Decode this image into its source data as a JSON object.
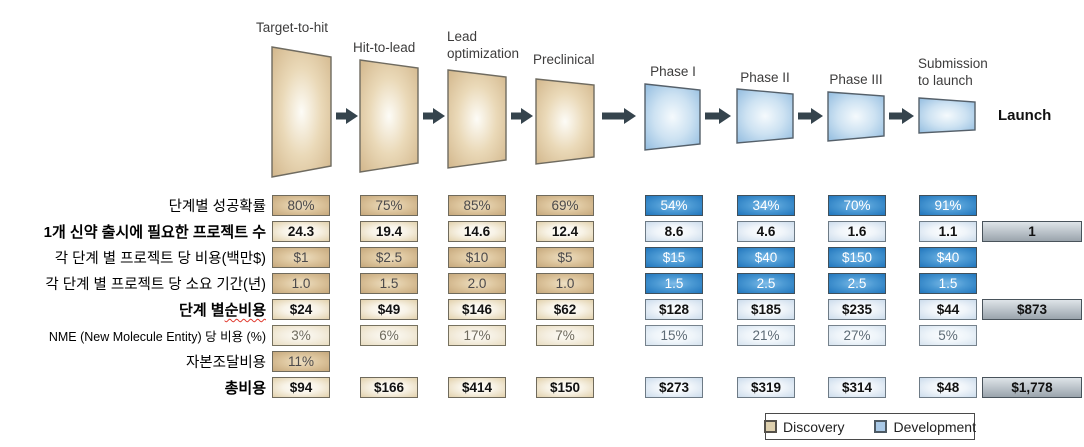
{
  "stages": [
    {
      "label": "Target-to-hit",
      "type": "discovery"
    },
    {
      "label": "Hit-to-lead",
      "type": "discovery"
    },
    {
      "label": "Lead optimization",
      "type": "discovery"
    },
    {
      "label": "Preclinical",
      "type": "discovery"
    },
    {
      "label": "Phase I",
      "type": "development"
    },
    {
      "label": "Phase II",
      "type": "development"
    },
    {
      "label": "Phase III",
      "type": "development"
    },
    {
      "label": "Submission to launch",
      "type": "development"
    }
  ],
  "launch_label": "Launch",
  "legend": {
    "discovery": "Discovery",
    "development": "Development"
  },
  "colors": {
    "discovery_fill": "#d3b88e",
    "development_fill": "#4c9ad4",
    "total_fill": "#aab3ba",
    "arrow": "#35444d",
    "wavy_underline": "#e0392e"
  },
  "table": {
    "rows": [
      {
        "label": "단계별 성공확률",
        "bold": false,
        "variant": "strong",
        "values": [
          "80%",
          "75%",
          "85%",
          "69%",
          "54%",
          "34%",
          "70%",
          "91%"
        ],
        "extra": null
      },
      {
        "label": "1개 신약 출시에 필요한 프로젝트 수",
        "bold": true,
        "variant": "light",
        "values": [
          "24.3",
          "19.4",
          "14.6",
          "12.4",
          "8.6",
          "4.6",
          "1.6",
          "1.1"
        ],
        "extra": "1"
      },
      {
        "label": "각 단계 별 프로젝트 당 비용(백만$)",
        "bold": false,
        "variant": "strong",
        "values": [
          "$1",
          "$2.5",
          "$10",
          "$5",
          "$15",
          "$40",
          "$150",
          "$40"
        ],
        "extra": null
      },
      {
        "label": "각 단계 별 프로젝트 당 소요 기간(년)",
        "bold": false,
        "variant": "strong",
        "values": [
          "1.0",
          "1.5",
          "2.0",
          "1.0",
          "1.5",
          "2.5",
          "2.5",
          "1.5"
        ],
        "extra": null
      },
      {
        "label_parts": {
          "plain": "단계 별 ",
          "wavy": "순비용"
        },
        "bold": true,
        "variant": "light",
        "values": [
          "$24",
          "$49",
          "$146",
          "$62",
          "$128",
          "$185",
          "$235",
          "$44"
        ],
        "extra": "$873"
      },
      {
        "label": "NME (New Molecule Entity) 당 비용 (%)",
        "bold": false,
        "small": true,
        "variant": "faint",
        "values": [
          "3%",
          "6%",
          "17%",
          "7%",
          "15%",
          "21%",
          "27%",
          "5%"
        ],
        "extra": null
      },
      {
        "label": "자본조달비용",
        "bold": false,
        "variant": "strong",
        "values": [
          "11%"
        ],
        "extra": null
      },
      {
        "label": "총비용",
        "bold": true,
        "variant": "light",
        "values": [
          "$94",
          "$166",
          "$414",
          "$150",
          "$273",
          "$319",
          "$314",
          "$48"
        ],
        "extra": "$1,778"
      }
    ]
  }
}
